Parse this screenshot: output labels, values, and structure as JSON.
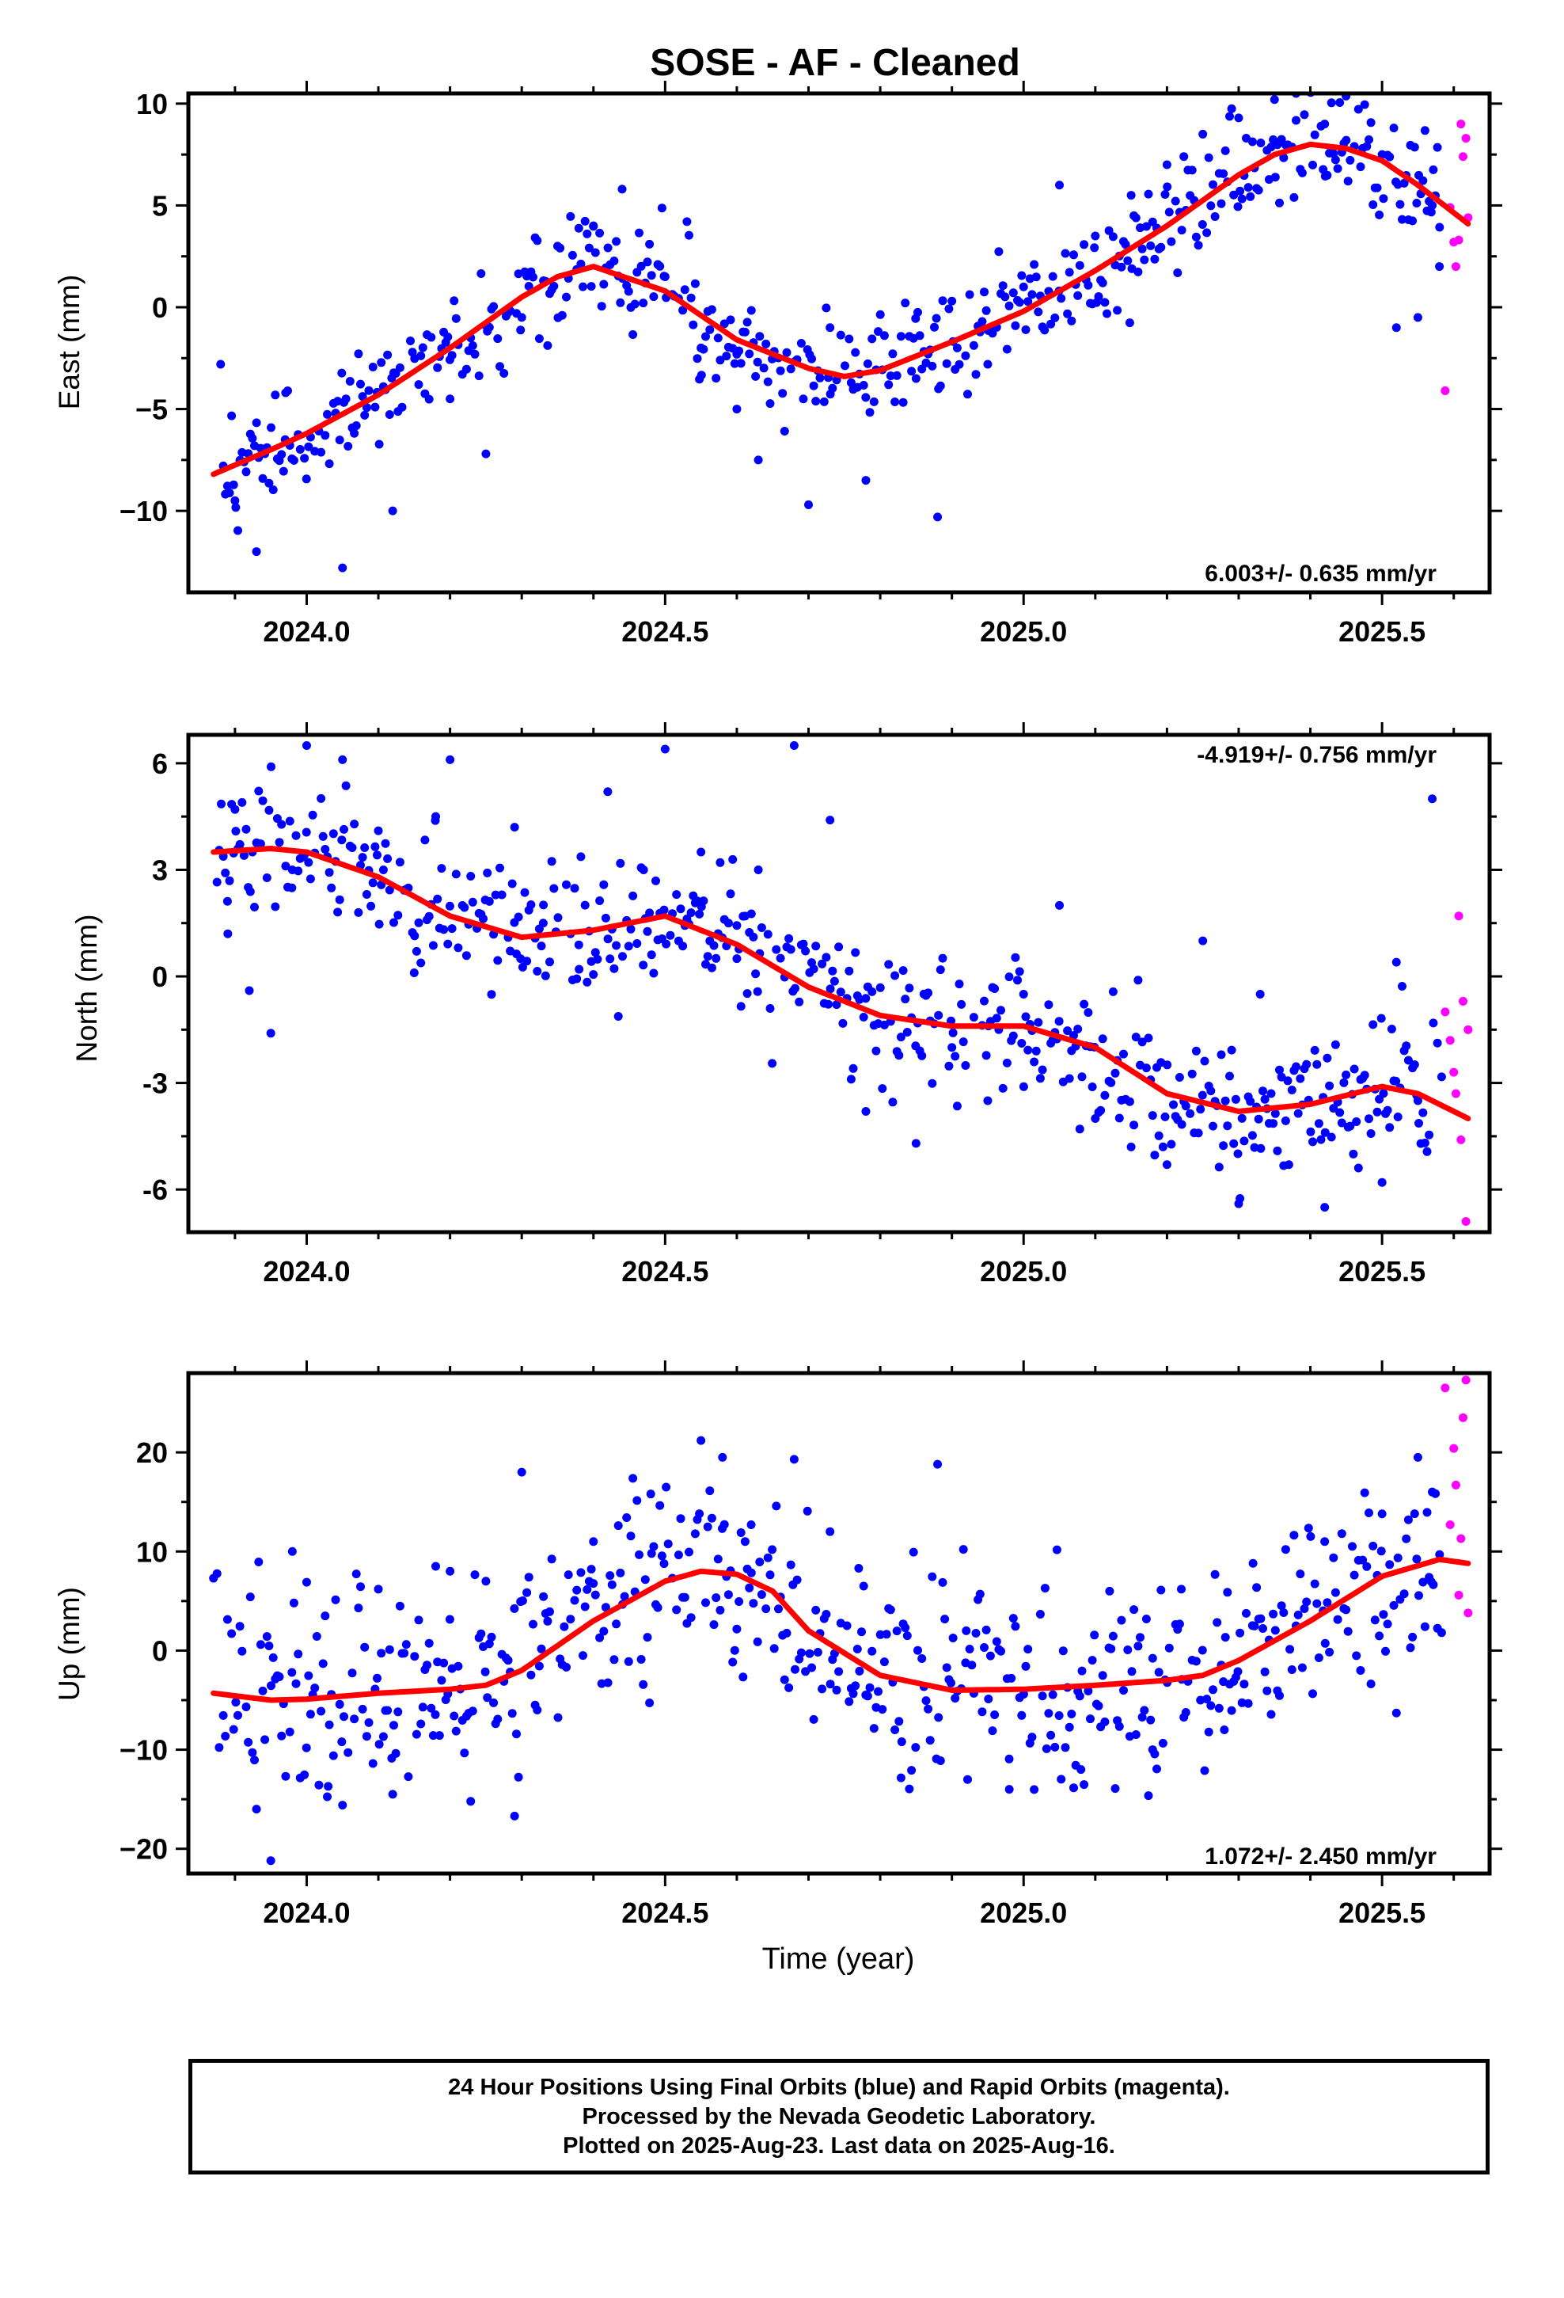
{
  "title": "SOSE  - AF - Cleaned",
  "xlabel": "Time (year)",
  "footer": [
    "24 Hour Positions Using Final Orbits (blue) and Rapid Orbits (magenta).",
    "Processed by the Nevada Geodetic Laboratory.",
    "Plotted on 2025-Aug-23. Last data on 2025-Aug-16."
  ],
  "colors": {
    "final": "#0000ff",
    "rapid": "#ff00ff",
    "model": "#ff0000"
  },
  "chart_data": [
    {
      "type": "scatter",
      "ylabel": "East (mm)",
      "xlim": [
        2023.835,
        2025.65
      ],
      "ylim": [
        -14,
        10.5
      ],
      "xticks": [
        "2024.0",
        "2024.5",
        "2025.0",
        "2025.5"
      ],
      "xtick_values": [
        2024.0,
        2024.5,
        2025.0,
        2025.5
      ],
      "yticks": [
        "10",
        "5",
        "0",
        "−5",
        "−10"
      ],
      "ytick_values": [
        10,
        5,
        0,
        -5,
        -10
      ],
      "rate_label": "6.003+/- 0.635 mm/yr",
      "rate_position": "bottom-right",
      "model": {
        "x": [
          2023.87,
          2023.95,
          2024.0,
          2024.1,
          2024.2,
          2024.3,
          2024.35,
          2024.4,
          2024.5,
          2024.6,
          2024.7,
          2024.75,
          2024.8,
          2024.9,
          2025.0,
          2025.1,
          2025.2,
          2025.3,
          2025.35,
          2025.4,
          2025.45,
          2025.5,
          2025.55,
          2025.62
        ],
        "y": [
          -8.2,
          -7.0,
          -6.2,
          -4.3,
          -2.0,
          0.5,
          1.5,
          2.0,
          0.8,
          -1.6,
          -3.0,
          -3.4,
          -3.1,
          -1.7,
          -0.2,
          1.8,
          4.0,
          6.5,
          7.5,
          8.0,
          7.8,
          7.2,
          6.0,
          4.1
        ]
      },
      "points": {
        "x": [
          2023.88,
          2023.9,
          2023.93,
          2023.97,
          2024.05,
          2024.12,
          2024.2,
          2024.25,
          2024.3,
          2024.35,
          2024.4,
          2024.44,
          2024.5,
          2024.55,
          2024.6,
          2024.63,
          2024.7,
          2024.73,
          2024.78,
          2024.85,
          2024.88,
          2024.9,
          2024.95,
          2025.0,
          2025.05,
          2025.1,
          2025.15,
          2025.2,
          2025.25,
          2025.3,
          2025.35,
          2025.38,
          2025.42,
          2025.45,
          2025.5,
          2025.52,
          2025.55,
          2025.57,
          2025.58
        ],
        "y": [
          -2.8,
          -9.5,
          -12.0,
          -6.5,
          -12.8,
          -10.0,
          -4.5,
          -7.2,
          -0.5,
          3.0,
          4.0,
          5.8,
          1.5,
          -2.0,
          -5.0,
          -7.5,
          -9.7,
          -1.0,
          -8.5,
          -3.5,
          -10.3,
          0.3,
          -2.8,
          1.0,
          6.0,
          3.5,
          5.5,
          7.0,
          8.5,
          9.3,
          10.2,
          10.5,
          9.0,
          8.2,
          7.5,
          -1.0,
          -0.5,
          5.0,
          2.0
        ]
      },
      "rapid_points": {
        "x": [
          2025.588,
          2025.595,
          2025.6,
          2025.603,
          2025.607,
          2025.61,
          2025.613,
          2025.617,
          2025.62
        ],
        "y": [
          -4.1,
          4.9,
          3.2,
          2.0,
          3.3,
          9.0,
          7.4,
          8.3,
          4.4
        ]
      }
    },
    {
      "type": "scatter",
      "ylabel": "North (mm)",
      "xlim": [
        2023.835,
        2025.65
      ],
      "ylim": [
        -7.2,
        6.8
      ],
      "xticks": [
        "2024.0",
        "2024.5",
        "2025.0",
        "2025.5"
      ],
      "xtick_values": [
        2024.0,
        2024.5,
        2025.0,
        2025.5
      ],
      "yticks": [
        "6",
        "3",
        "0",
        "-3",
        "-6"
      ],
      "ytick_values": [
        6,
        3,
        0,
        -3,
        -6
      ],
      "rate_label": "-4.919+/- 0.756 mm/yr",
      "rate_position": "top-right",
      "model": {
        "x": [
          2023.87,
          2023.95,
          2024.0,
          2024.1,
          2024.2,
          2024.3,
          2024.4,
          2024.5,
          2024.6,
          2024.7,
          2024.8,
          2024.9,
          2025.0,
          2025.1,
          2025.2,
          2025.3,
          2025.4,
          2025.5,
          2025.55,
          2025.62
        ],
        "y": [
          3.5,
          3.6,
          3.5,
          2.8,
          1.7,
          1.1,
          1.3,
          1.7,
          0.9,
          -0.3,
          -1.1,
          -1.4,
          -1.4,
          -2.0,
          -3.3,
          -3.8,
          -3.6,
          -3.1,
          -3.3,
          -4.0
        ]
      },
      "points": {
        "x": [
          2023.89,
          2023.9,
          2023.92,
          2023.95,
          2023.98,
          2024.0,
          2024.05,
          2024.1,
          2024.15,
          2024.18,
          2024.2,
          2024.29,
          2024.33,
          2024.38,
          2024.42,
          2024.47,
          2024.5,
          2024.55,
          2024.6,
          2024.63,
          2024.68,
          2024.73,
          2024.78,
          2024.85,
          2024.9,
          2024.95,
          2025.0,
          2025.05,
          2025.1,
          2025.15,
          2025.2,
          2025.25,
          2025.3,
          2025.33,
          2025.37,
          2025.42,
          2025.46,
          2025.5,
          2025.52,
          2025.55,
          2025.57
        ],
        "y": [
          1.2,
          4.7,
          -0.4,
          -1.6,
          3.0,
          6.5,
          6.1,
          4.1,
          0.1,
          4.5,
          6.1,
          4.2,
          1.5,
          0.2,
          5.2,
          3.0,
          6.4,
          3.5,
          0.5,
          3.0,
          6.5,
          4.4,
          -3.8,
          -4.7,
          -2.0,
          -3.5,
          -0.5,
          2.0,
          -4.0,
          -4.8,
          -5.3,
          1.0,
          -6.4,
          -0.5,
          -5.3,
          -6.5,
          -5.0,
          -5.8,
          0.4,
          -3.5,
          5.0
        ]
      },
      "rapid_points": {
        "x": [
          2025.588,
          2025.595,
          2025.6,
          2025.603,
          2025.607,
          2025.61,
          2025.613,
          2025.617,
          2025.62
        ],
        "y": [
          -1.0,
          -1.8,
          -2.7,
          -3.3,
          1.7,
          -4.6,
          -0.7,
          -6.9,
          -1.5
        ]
      }
    },
    {
      "type": "scatter",
      "ylabel": "Up (mm)",
      "xlim": [
        2023.835,
        2025.65
      ],
      "ylim": [
        -22.5,
        28
      ],
      "xticks": [
        "2024.0",
        "2024.5",
        "2025.0",
        "2025.5"
      ],
      "xtick_values": [
        2024.0,
        2024.5,
        2025.0,
        2025.5
      ],
      "yticks": [
        "20",
        "10",
        "0",
        "−10",
        "−20"
      ],
      "ytick_values": [
        20,
        10,
        0,
        -10,
        -20
      ],
      "rate_label": "1.072+/- 2.450 mm/yr",
      "rate_position": "bottom-right",
      "model": {
        "x": [
          2023.87,
          2023.95,
          2024.0,
          2024.1,
          2024.2,
          2024.25,
          2024.3,
          2024.35,
          2024.4,
          2024.5,
          2024.55,
          2024.6,
          2024.65,
          2024.7,
          2024.8,
          2024.9,
          2025.0,
          2025.1,
          2025.2,
          2025.25,
          2025.3,
          2025.4,
          2025.5,
          2025.58,
          2025.62
        ],
        "y": [
          -4.3,
          -5.0,
          -4.9,
          -4.3,
          -3.9,
          -3.5,
          -2.0,
          0.5,
          3.0,
          7.0,
          8.0,
          7.7,
          6.0,
          2.0,
          -2.5,
          -4.0,
          -3.9,
          -3.5,
          -3.0,
          -2.5,
          -1.0,
          3.0,
          7.5,
          9.2,
          8.8
        ]
      },
      "points": {
        "x": [
          2023.87,
          2023.93,
          2023.95,
          2023.98,
          2024.0,
          2024.03,
          2024.05,
          2024.1,
          2024.12,
          2024.18,
          2024.2,
          2024.25,
          2024.29,
          2024.3,
          2024.4,
          2024.48,
          2024.55,
          2024.58,
          2024.62,
          2024.68,
          2024.73,
          2024.77,
          2024.83,
          2024.88,
          2024.92,
          2024.98,
          2025.03,
          2025.08,
          2025.12,
          2025.18,
          2025.22,
          2025.28,
          2025.32,
          2025.38,
          2025.42,
          2025.47,
          2025.5,
          2025.52,
          2025.55,
          2025.57
        ],
        "y": [
          7.3,
          -16.0,
          -21.2,
          10.0,
          6.9,
          -13.7,
          -15.6,
          6.2,
          -14.5,
          8.5,
          8.0,
          7.0,
          -16.7,
          18.0,
          11.0,
          15.8,
          21.2,
          19.5,
          12.7,
          19.3,
          12.0,
          8.3,
          -9.2,
          18.8,
          2.0,
          -14.0,
          6.3,
          -12.0,
          6.0,
          -10.0,
          6.2,
          -8.0,
          8.8,
          2.5,
          11.0,
          -2.0,
          13.8,
          -6.3,
          19.5,
          16.0
        ]
      },
      "rapid_points": {
        "x": [
          2025.588,
          2025.595,
          2025.6,
          2025.603,
          2025.607,
          2025.61,
          2025.613,
          2025.617,
          2025.62
        ],
        "y": [
          26.5,
          12.7,
          20.4,
          16.7,
          5.6,
          11.3,
          23.5,
          27.3,
          3.8
        ]
      }
    }
  ]
}
